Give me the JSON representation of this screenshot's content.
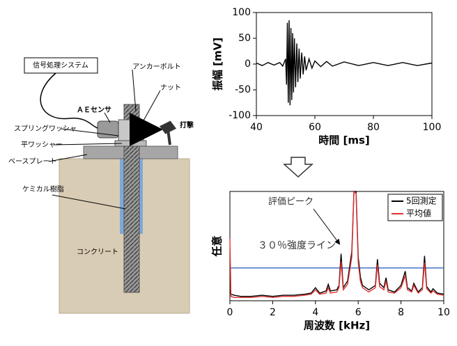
{
  "chart_data": [
    {
      "type": "line",
      "xlabel": "時間 [ms]",
      "ylabel": "振幅 [mV]",
      "xlim": [
        40,
        100
      ],
      "ylim": [
        -100,
        100
      ],
      "xticks": [
        40,
        60,
        80,
        100
      ],
      "yticks": [
        -100,
        -50,
        0,
        50,
        100
      ],
      "series": [
        {
          "color": "#000000",
          "x": [
            40,
            42,
            44,
            46,
            48,
            49,
            50,
            50.3,
            50.6,
            50.9,
            51.2,
            51.5,
            51.8,
            52.1,
            52.4,
            52.7,
            53,
            53.4,
            53.8,
            54.2,
            54.6,
            55,
            55.5,
            56,
            56.5,
            57,
            58,
            59,
            60,
            62,
            64,
            66,
            70,
            75,
            80,
            85,
            90,
            95,
            100
          ],
          "values": [
            2,
            -3,
            3,
            -2,
            3,
            -4,
            10,
            -40,
            80,
            -75,
            85,
            -80,
            70,
            -70,
            60,
            -55,
            50,
            -45,
            40,
            -35,
            30,
            -28,
            22,
            -20,
            15,
            -12,
            10,
            -8,
            6,
            -5,
            5,
            -4,
            4,
            -3,
            3,
            -3,
            3,
            -3,
            2
          ]
        }
      ]
    },
    {
      "type": "line",
      "xlabel": "周波数 [kHz]",
      "ylabel": "任意",
      "xlim": [
        0,
        10
      ],
      "ylim": [
        0,
        100
      ],
      "xticks": [
        0,
        2,
        4,
        6,
        8,
        10
      ],
      "legend": "upper right",
      "x": [
        0,
        0.05,
        0.2,
        0.5,
        1,
        1.5,
        2,
        2.5,
        3,
        3.5,
        3.8,
        4,
        4.2,
        4.5,
        4.6,
        4.7,
        5,
        5.1,
        5.2,
        5.3,
        5.5,
        5.7,
        5.8,
        5.9,
        6,
        6.1,
        6.2,
        6.5,
        6.8,
        6.9,
        7,
        7.2,
        7.3,
        7.4,
        7.7,
        8,
        8.2,
        8.3,
        8.5,
        8.6,
        8.8,
        9,
        9.1,
        9.2,
        9.4,
        9.5,
        9.7,
        10
      ],
      "series": [
        {
          "name": "5回測定",
          "color": "#000000",
          "values": [
            10,
            6,
            5,
            4,
            4,
            5,
            4,
            5,
            5,
            6,
            7,
            12,
            7,
            9,
            15,
            9,
            10,
            14,
            43,
            12,
            18,
            45,
            100,
            100,
            40,
            22,
            14,
            10,
            14,
            38,
            16,
            12,
            21,
            10,
            8,
            14,
            27,
            12,
            9,
            16,
            8,
            12,
            41,
            13,
            8,
            11,
            7,
            6
          ]
        },
        {
          "name": "平均値",
          "color": "#e03030",
          "values": [
            57,
            4,
            3,
            3,
            3,
            4,
            3,
            4,
            4,
            5,
            6,
            10,
            6,
            7,
            12,
            7,
            8,
            12,
            36,
            10,
            15,
            40,
            100,
            98,
            35,
            18,
            12,
            8,
            12,
            33,
            13,
            10,
            18,
            8,
            7,
            12,
            23,
            10,
            8,
            14,
            7,
            10,
            35,
            11,
            7,
            9,
            6,
            5
          ]
        }
      ],
      "reference_line": {
        "value": 30,
        "label": "３０％強度ライン",
        "color": "#4472c4"
      },
      "annotation": "評価ピーク"
    }
  ],
  "diagram": {
    "labels": [
      "信号処理システム",
      "アンカーボルト",
      "ＡＥセンサ",
      "ナット",
      "打撃",
      "スプリングワッシャ",
      "平ワッシャー",
      "ベースプレート",
      "ケミカル樹脂",
      "コンクリート"
    ]
  }
}
